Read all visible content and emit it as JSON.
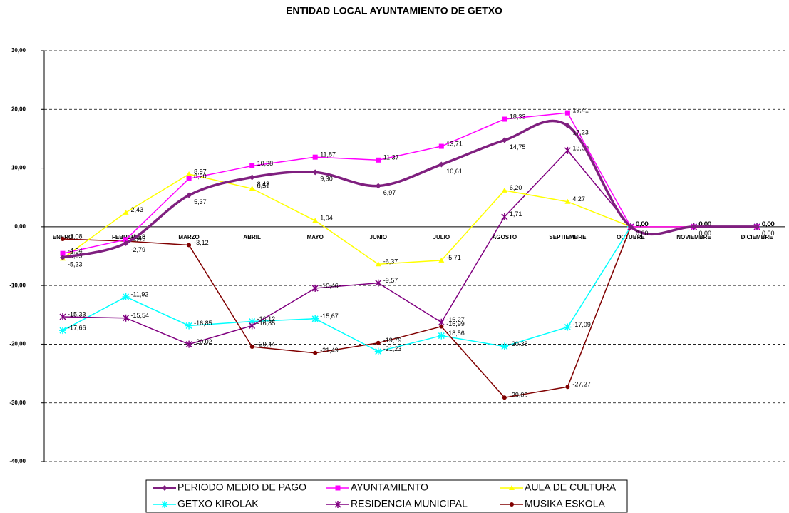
{
  "chart_data": {
    "type": "line",
    "title": "ENTIDAD LOCAL AYUNTAMIENTO DE GETXO",
    "categories": [
      "ENERO",
      "FEBRERO",
      "MARZO",
      "ABRIL",
      "MAYO",
      "JUNIO",
      "JULIO",
      "AGOSTO",
      "SEPTIEMBRE",
      "OCTUBRE",
      "NOVIEMBRE",
      "DICIEMBRE"
    ],
    "ylim": [
      -40,
      30
    ],
    "yticks": [
      {
        "value": -40,
        "label": "-40,00"
      },
      {
        "value": -30,
        "label": "-30,00"
      },
      {
        "value": -20,
        "label": "-20,00"
      },
      {
        "value": -10,
        "label": "-10,00"
      },
      {
        "value": 0,
        "label": "0,00"
      },
      {
        "value": 10,
        "label": "10,00"
      },
      {
        "value": 20,
        "label": "20,00"
      },
      {
        "value": 30,
        "label": "30,00"
      }
    ],
    "grid": true,
    "legend": "bottom",
    "series": [
      {
        "name": "PERIODO MEDIO DE PAGO",
        "color": "#7f1f7f",
        "marker": "diamond",
        "smooth": true,
        "values": [
          -5.23,
          -2.79,
          5.37,
          8.43,
          9.3,
          6.97,
          10.61,
          14.75,
          17.23,
          0,
          0,
          0
        ],
        "value_labels": [
          "-5,23",
          "-2,79",
          "5,37",
          "8,43",
          "9,30",
          "6,97",
          "10,61",
          "14,75",
          "17,23",
          "0,00",
          "0,00",
          "0,00"
        ]
      },
      {
        "name": "AYUNTAMIENTO",
        "color": "#ff00ff",
        "marker": "square",
        "values": [
          -4.54,
          -2.18,
          8.2,
          10.38,
          11.87,
          11.37,
          13.71,
          18.33,
          19.41,
          0,
          0,
          0
        ],
        "value_labels": [
          "-4,54",
          "-2,18",
          "8,20",
          "10,38",
          "11,87",
          "11,37",
          "13,71",
          "18,33",
          "19,41",
          "0,00",
          "0,00",
          "0,00"
        ]
      },
      {
        "name": "AULA DE CULTURA",
        "color": "#ffff00",
        "marker": "triangle",
        "values": [
          -5.39,
          2.43,
          8.97,
          6.51,
          1.04,
          -6.37,
          -5.71,
          6.2,
          4.27,
          0,
          0,
          0
        ],
        "value_labels": [
          "-5,39",
          "2,43",
          "8,97",
          "6,51",
          "1,04",
          "-6,37",
          "-5,71",
          "6,20",
          "4,27",
          "0,00",
          "0,00",
          "0,00"
        ]
      },
      {
        "name": "GETXO KIROLAK",
        "color": "#00ffff",
        "marker": "star",
        "values": [
          -17.66,
          -11.92,
          -16.85,
          -16.12,
          -15.67,
          -21.23,
          -18.56,
          -20.38,
          -17.09,
          0,
          0,
          0
        ],
        "value_labels": [
          "-17,66",
          "-11,92",
          "-16,85",
          "-16,12",
          "-15,67",
          "-21,23",
          "-18,56",
          "-20,38",
          "-17,09",
          "0,00",
          "0,00",
          "0,00"
        ]
      },
      {
        "name": "RESIDENCIA MUNICIPAL",
        "color": "#800080",
        "marker": "asterisk",
        "values": [
          -15.33,
          -15.54,
          -20.02,
          -16.85,
          -10.46,
          -9.57,
          -16.27,
          1.71,
          13.0,
          0,
          0,
          0
        ],
        "value_labels": [
          "-15,33",
          "-15,54",
          "-20,02",
          "-16,85",
          "-10,46",
          "-9,57",
          "-16,27",
          "1,71",
          "13,00",
          "0,00",
          "0,00",
          "0,00"
        ]
      },
      {
        "name": "MUSIKA ESKOLA",
        "color": "#800000",
        "marker": "circle",
        "values": [
          -2.08,
          -2.45,
          -3.12,
          -20.44,
          -21.49,
          -19.79,
          -16.99,
          -29.09,
          -27.27,
          0,
          0,
          0
        ],
        "value_labels": [
          "-2,08",
          "-2,45",
          "-3,12",
          "-20,44",
          "-21,49",
          "-19,79",
          "-16,99",
          "-29,09",
          "-27,27",
          "0,00",
          "0,00",
          "0,00"
        ]
      }
    ]
  }
}
